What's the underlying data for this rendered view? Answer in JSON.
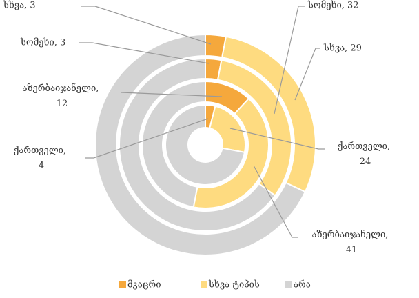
{
  "chart_data": {
    "type": "multi-donut",
    "categories": [
      "მკაცრი",
      "სხვა ტიპის",
      "არა"
    ],
    "colors": [
      "#f5a83c",
      "#fedb80",
      "#d4d4d4"
    ],
    "series": [
      {
        "name": "ქართველი",
        "values": [
          4,
          24,
          72
        ],
        "value_labels": [
          "ქართველი, 4",
          "ქართველი, 24",
          null
        ]
      },
      {
        "name": "აზერბაიჯანელი",
        "values": [
          12,
          41,
          47
        ],
        "value_labels": [
          "აზერბაიჯანელი, 12",
          "აზერბაიჯანელი, 41",
          null
        ]
      },
      {
        "name": "სომეხი",
        "values": [
          3,
          32,
          65
        ],
        "value_labels": [
          "სომეხი, 3",
          "სომეხი, 32",
          null
        ]
      },
      {
        "name": "სხვა",
        "values": [
          3,
          29,
          68
        ],
        "value_labels": [
          "სხვა, 3",
          "სხვა, 29",
          null
        ]
      }
    ]
  }
}
